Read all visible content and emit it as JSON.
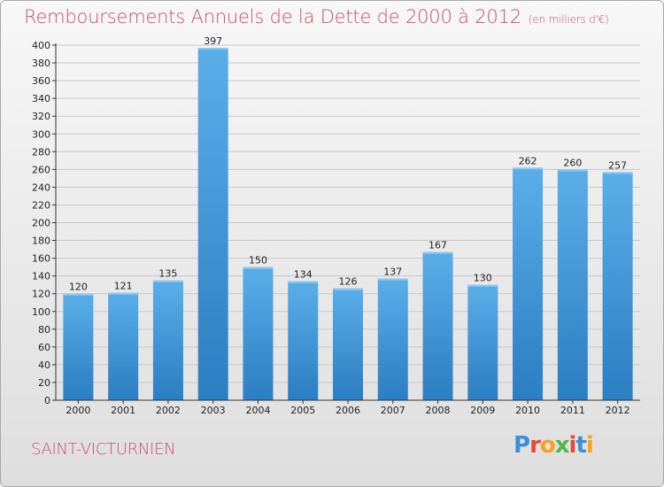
{
  "header": {
    "title": "Remboursements Annuels de la Dette de 2000 à 2012",
    "subtitle": "(en milliers d'€)"
  },
  "footer": {
    "town": "SAINT-VICTURNIEN",
    "logo": "Proxiti",
    "logo_colors": [
      "#3a8fd8",
      "#e8473c",
      "#f4a21f",
      "#4fb848",
      "#e8473c",
      "#3a8fd8",
      "#f4a21f"
    ]
  },
  "chart_data": {
    "type": "bar",
    "title": "Remboursements Annuels de la Dette de 2000 à 2012",
    "subtitle": "(en milliers d'€)",
    "categories": [
      "2000",
      "2001",
      "2002",
      "2003",
      "2004",
      "2005",
      "2006",
      "2007",
      "2008",
      "2009",
      "2010",
      "2011",
      "2012"
    ],
    "values": [
      120,
      121,
      135,
      397,
      150,
      134,
      126,
      137,
      167,
      130,
      262,
      260,
      257
    ],
    "ylim": [
      0,
      400
    ],
    "yticks": [
      0,
      20,
      40,
      60,
      80,
      100,
      120,
      140,
      160,
      180,
      200,
      220,
      240,
      260,
      280,
      300,
      320,
      340,
      360,
      380,
      400
    ],
    "grid": true,
    "bar_color": "#4da1e0",
    "bar_color_dark": "#2b7fc4",
    "grid_color": "#c8c8c8"
  }
}
